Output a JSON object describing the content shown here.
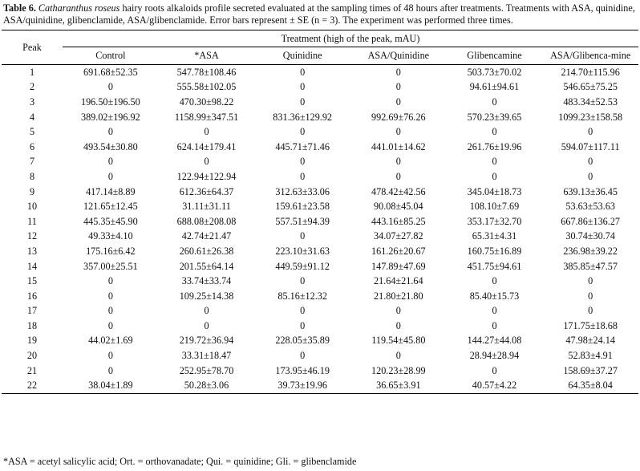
{
  "caption": {
    "label": "Table 6.",
    "species": "Catharanthus roseus",
    "text": " hairy roots alkaloids profile secreted evaluated at the sampling times of 48 hours after treatments. Treatments with ASA, quinidine, ASA/quinidine, glibenclamide, ASA/glibenclamide. Error bars represent ± SE (n = 3). The experiment was performed three times."
  },
  "table": {
    "peak_header": "Peak",
    "treatment_header": "Treatment (high of the peak, mAU)",
    "columns": [
      "Control",
      "*ASA",
      "Quinidine",
      "ASA/Quinidine",
      "Glibencamine",
      "ASA/Glibenca-mine"
    ],
    "rows": [
      [
        "1",
        "691.68±52.35",
        "547.78±108.46",
        "0",
        "0",
        "503.73±70.02",
        "214.70±115.96"
      ],
      [
        "2",
        "0",
        "555.58±102.05",
        "0",
        "0",
        "94.61±94.61",
        "546.65±75.25"
      ],
      [
        "3",
        "196.50±196.50",
        "470.30±98.22",
        "0",
        "0",
        "0",
        "483.34±52.53"
      ],
      [
        "4",
        "389.02±196.92",
        "1158.99±347.51",
        "831.36±129.92",
        "992.69±76.26",
        "570.23±39.65",
        "1099.23±158.58"
      ],
      [
        "5",
        "0",
        "0",
        "0",
        "0",
        "0",
        "0"
      ],
      [
        "6",
        "493.54±30.80",
        "624.14±179.41",
        "445.71±71.46",
        "441.01±14.62",
        "261.76±19.96",
        "594.07±117.11"
      ],
      [
        "7",
        "0",
        "0",
        "0",
        "0",
        "0",
        "0"
      ],
      [
        "8",
        "0",
        "122.94±122.94",
        "0",
        "0",
        "0",
        "0"
      ],
      [
        "9",
        "417.14±8.89",
        "612.36±64.37",
        "312.63±33.06",
        "478.42±42.56",
        "345.04±18.73",
        "639.13±36.45"
      ],
      [
        "10",
        "121.65±12.45",
        "31.11±31.11",
        "159.61±23.58",
        "90.08±45.04",
        "108.10±7.69",
        "53.63±53.63"
      ],
      [
        "11",
        "445.35±45.90",
        "688.08±208.08",
        "557.51±94.39",
        "443.16±85.25",
        "353.17±32.70",
        "667.86±136.27"
      ],
      [
        "12",
        "49.33±4.10",
        "42.74±21.47",
        "0",
        "34.07±27.82",
        "65.31±4.31",
        "30.74±30.74"
      ],
      [
        "13",
        "175.16±6.42",
        "260.61±26.38",
        "223.10±31.63",
        "161.26±20.67",
        "160.75±16.89",
        "236.98±39.22"
      ],
      [
        "14",
        "357.00±25.51",
        "201.55±64.14",
        "449.59±91.12",
        "147.89±47.69",
        "451.75±94.61",
        "385.85±47.57"
      ],
      [
        "15",
        "0",
        "33.74±33.74",
        "0",
        "21.64±21.64",
        "0",
        "0"
      ],
      [
        "16",
        "0",
        "109.25±14.38",
        "85.16±12.32",
        "21.80±21.80",
        "85.40±15.73",
        "0"
      ],
      [
        "17",
        "0",
        "0",
        "0",
        "0",
        "0",
        "0"
      ],
      [
        "18",
        "0",
        "0",
        "0",
        "0",
        "0",
        "171.75±18.68"
      ],
      [
        "19",
        "44.02±1.69",
        "219.72±36.94",
        "228.05±35.89",
        "119.54±45.80",
        "144.27±44.08",
        "47.98±24.14"
      ],
      [
        "20",
        "0",
        "33.31±18.47",
        "0",
        "0",
        "28.94±28.94",
        "52.83±4.91"
      ],
      [
        "21",
        "0",
        "252.95±78.70",
        "173.95±46.19",
        "120.23±28.99",
        "0",
        "158.69±37.27"
      ],
      [
        "22",
        "38.04±1.89",
        "50.28±3.06",
        "39.73±19.96",
        "36.65±3.91",
        "40.57±4.22",
        "64.35±8.04"
      ]
    ]
  },
  "footnote": "*ASA = acetyl salicylic acid; Ort. = orthovanadate; Qui. = quinidine; Gli. = glibenclamide"
}
